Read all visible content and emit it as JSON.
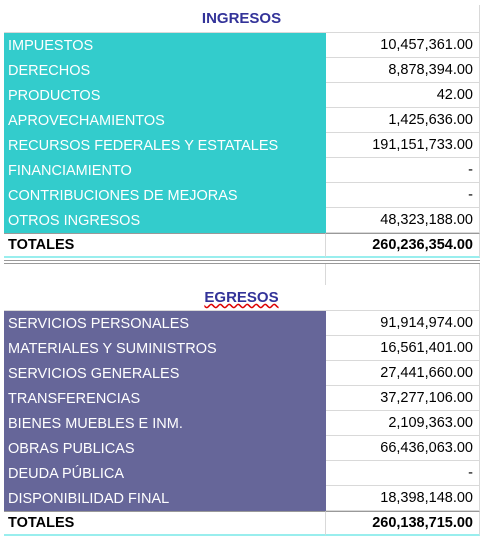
{
  "ingresos": {
    "title": "INGRESOS",
    "rows": [
      [
        "IMPUESTOS",
        "10,457,361.00"
      ],
      [
        "DERECHOS",
        "8,878,394.00"
      ],
      [
        "PRODUCTOS",
        "42.00"
      ],
      [
        "APROVECHAMIENTOS",
        "1,425,636.00"
      ],
      [
        "RECURSOS FEDERALES Y ESTATALES",
        "191,151,733.00"
      ],
      [
        "FINANCIAMIENTO",
        "-"
      ],
      [
        "CONTRIBUCIONES DE MEJORAS",
        "-"
      ],
      [
        "OTROS INGRESOS",
        "48,323,188.00"
      ]
    ],
    "total": [
      "TOTALES",
      "260,236,354.00"
    ]
  },
  "egresos": {
    "title": "EGRESOS",
    "rows": [
      [
        "SERVICIOS PERSONALES",
        "91,914,974.00"
      ],
      [
        "MATERIALES Y SUMINISTROS",
        "16,561,401.00"
      ],
      [
        "SERVICIOS GENERALES",
        "27,441,660.00"
      ],
      [
        "TRANSFERENCIAS",
        "37,277,106.00"
      ],
      [
        "BIENES MUEBLES E INM.",
        "2,109,363.00"
      ],
      [
        "OBRAS PUBLICAS",
        "66,436,063.00"
      ],
      [
        "DEUDA PÚBLICA",
        "-"
      ],
      [
        "DISPONIBILIDAD FINAL",
        "18,398,148.00"
      ]
    ],
    "total": [
      "TOTALES",
      "260,138,715.00"
    ]
  }
}
